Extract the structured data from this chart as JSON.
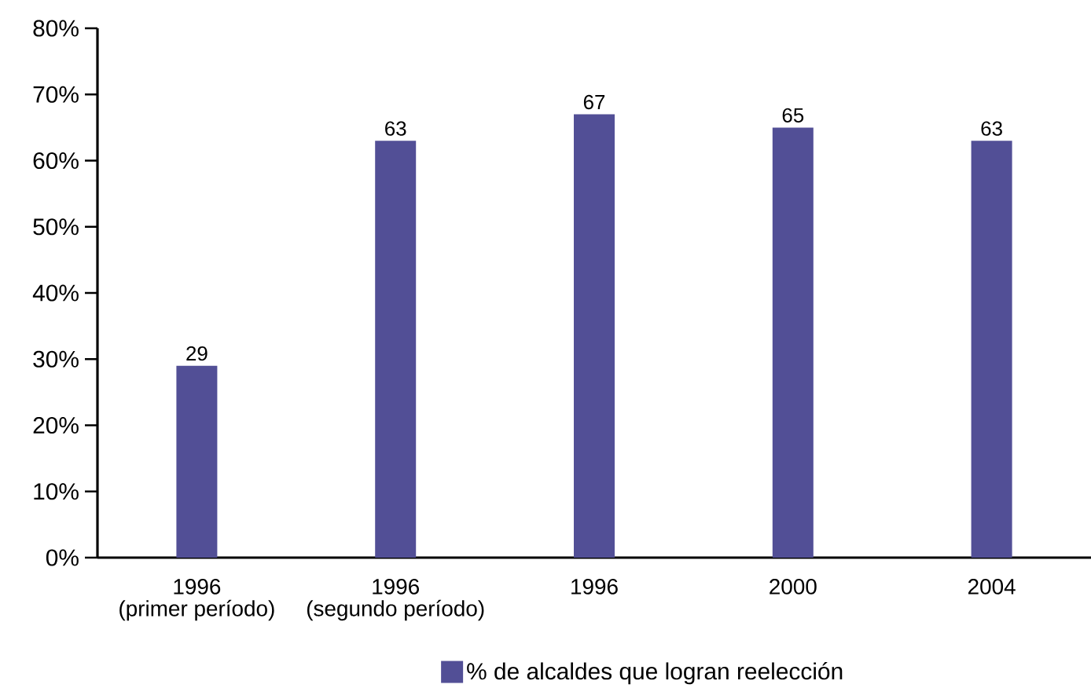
{
  "chart_data": {
    "type": "bar",
    "categories": [
      "1996\n(primer período)",
      "1996\n(segundo período)",
      "1996",
      "2000",
      "2004"
    ],
    "series": [
      {
        "name": "% de alcaldes que logran reelección",
        "color": "#524f96",
        "values": [
          29,
          63,
          67,
          65,
          63
        ]
      }
    ],
    "ylim": [
      0,
      80
    ],
    "yticks": [
      {
        "value": 0,
        "label": "0%"
      },
      {
        "value": 10,
        "label": "10%"
      },
      {
        "value": 20,
        "label": "20%"
      },
      {
        "value": 30,
        "label": "30%"
      },
      {
        "value": 40,
        "label": "40%"
      },
      {
        "value": 50,
        "label": "50%"
      },
      {
        "value": 60,
        "label": "60%"
      },
      {
        "value": 70,
        "label": "70%"
      },
      {
        "value": 80,
        "label": "80%"
      }
    ],
    "data_labels": true,
    "grid": false,
    "legend": "bottom"
  }
}
